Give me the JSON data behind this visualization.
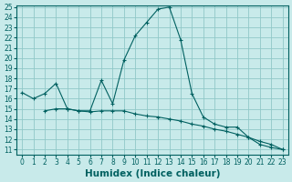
{
  "line1_x": [
    0,
    1,
    2,
    3,
    4,
    5,
    6,
    7,
    8,
    9,
    10,
    11,
    12,
    13,
    14,
    15,
    16,
    17,
    18,
    19,
    20,
    21,
    22,
    23
  ],
  "line1_y": [
    16.6,
    16.0,
    16.5,
    17.5,
    15.0,
    14.8,
    14.8,
    17.8,
    15.5,
    19.8,
    22.2,
    23.5,
    24.8,
    25.0,
    21.8,
    16.5,
    14.2,
    13.5,
    13.2,
    13.2,
    12.2,
    11.5,
    11.2,
    11.0
  ],
  "line2_x": [
    2,
    3,
    4,
    5,
    6,
    7,
    8,
    9,
    10,
    11,
    12,
    13,
    14,
    15,
    16,
    17,
    18,
    19,
    20,
    21,
    22,
    23
  ],
  "line2_y": [
    14.8,
    15.0,
    15.0,
    14.8,
    14.7,
    14.8,
    14.8,
    14.8,
    14.5,
    14.3,
    14.2,
    14.0,
    13.8,
    13.5,
    13.3,
    13.0,
    12.8,
    12.5,
    12.2,
    11.8,
    11.5,
    11.0
  ],
  "bg_color": "#c8eaea",
  "grid_color": "#90c8c8",
  "line_color": "#006060",
  "marker": "+",
  "xlim": [
    -0.5,
    23.5
  ],
  "ylim": [
    11,
    25
  ],
  "yticks": [
    11,
    12,
    13,
    14,
    15,
    16,
    17,
    18,
    19,
    20,
    21,
    22,
    23,
    24,
    25
  ],
  "xticks": [
    0,
    1,
    2,
    3,
    4,
    5,
    6,
    7,
    8,
    9,
    10,
    11,
    12,
    13,
    14,
    15,
    16,
    17,
    18,
    19,
    20,
    21,
    22,
    23
  ],
  "xlabel": "Humidex (Indice chaleur)",
  "xlabel_fontsize": 7.5,
  "tick_fontsize": 5.5
}
